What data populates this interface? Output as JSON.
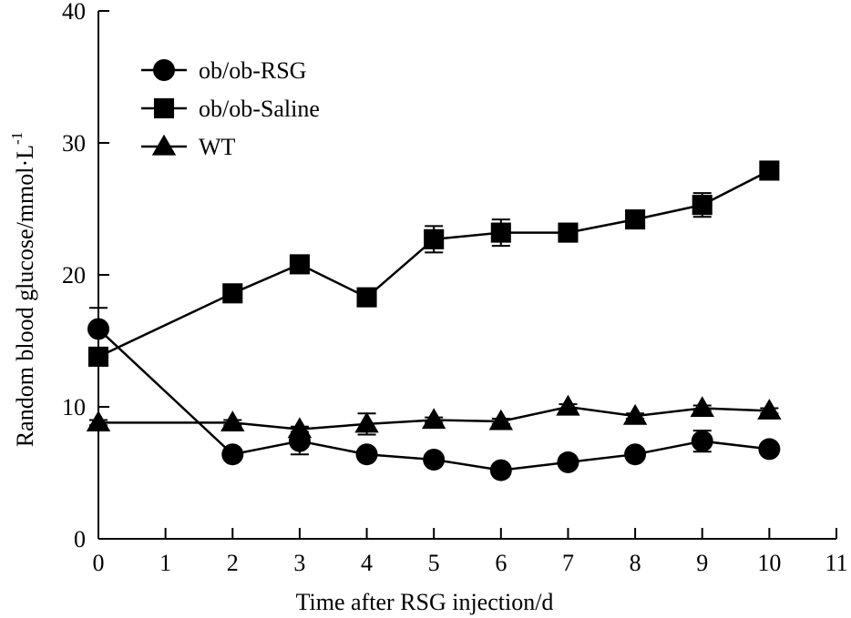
{
  "chart_data": {
    "type": "line",
    "title": "",
    "xlabel": "Time after RSG injection/d",
    "ylabel": "Random blood glucose/mmol·L",
    "ylabel_superscript": "-1",
    "xlim": [
      0,
      11
    ],
    "ylim": [
      0,
      40
    ],
    "xticks": [
      0,
      1,
      2,
      3,
      4,
      5,
      6,
      7,
      8,
      9,
      10,
      11
    ],
    "yticks": [
      0,
      10,
      20,
      30,
      40
    ],
    "grid": false,
    "legend_position": "top-left",
    "series": [
      {
        "name": "ob/ob-RSG",
        "marker": "circle",
        "x": [
          0,
          2,
          3,
          4,
          5,
          6,
          7,
          8,
          9,
          10
        ],
        "y": [
          15.9,
          6.4,
          7.4,
          6.4,
          6.0,
          5.2,
          5.8,
          6.4,
          7.4,
          6.8
        ],
        "err": [
          1.6,
          0.3,
          1.0,
          0.3,
          0.3,
          0.3,
          0.3,
          0.3,
          0.8,
          0.3
        ]
      },
      {
        "name": "ob/ob-Saline",
        "marker": "square",
        "x": [
          0,
          2,
          3,
          4,
          5,
          6,
          7,
          8,
          9,
          10
        ],
        "y": [
          13.8,
          18.6,
          20.8,
          18.3,
          22.7,
          23.2,
          23.2,
          24.2,
          25.3,
          27.9
        ],
        "err": [
          0.4,
          0.4,
          0.6,
          0.5,
          1.0,
          1.0,
          0.5,
          0.4,
          0.9,
          0.3
        ]
      },
      {
        "name": "WT",
        "marker": "triangle",
        "x": [
          0,
          2,
          3,
          4,
          5,
          6,
          7,
          8,
          9,
          10
        ],
        "y": [
          8.8,
          8.8,
          8.3,
          8.7,
          9.0,
          8.9,
          10.0,
          9.3,
          9.9,
          9.7
        ],
        "err": [
          0.2,
          0.2,
          0.2,
          0.8,
          0.2,
          0.2,
          0.2,
          0.2,
          0.2,
          0.2
        ]
      }
    ]
  }
}
